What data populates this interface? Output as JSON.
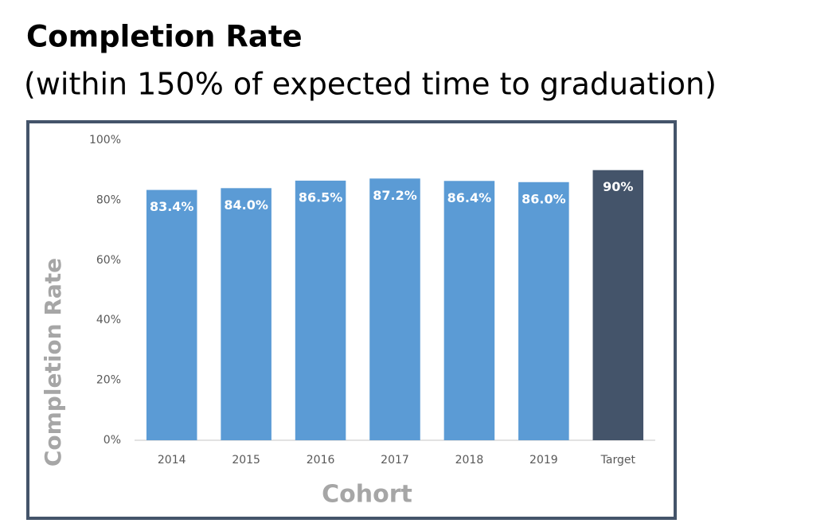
{
  "chart_data": {
    "type": "bar",
    "title": "Completion Rate",
    "subtitle": "(within 150% of expected time to graduation)",
    "y_label": "Completion Rate",
    "x_label": "Cohort",
    "categories": [
      "2014",
      "2015",
      "2016",
      "2017",
      "2018",
      "2019",
      "Target"
    ],
    "values": [
      83.4,
      84.0,
      86.5,
      87.2,
      86.4,
      86.0,
      90
    ],
    "value_labels": [
      "83.4%",
      "84.0%",
      "86.5%",
      "87.2%",
      "86.4%",
      "86.0%",
      "90%"
    ],
    "colors": [
      "#5b9bd5",
      "#5b9bd5",
      "#5b9bd5",
      "#5b9bd5",
      "#5b9bd5",
      "#5b9bd5",
      "#44546a"
    ],
    "ylim": [
      0,
      100
    ],
    "yticks": [
      {
        "value": 0,
        "label": "0%"
      },
      {
        "value": 20,
        "label": "20%"
      },
      {
        "value": 40,
        "label": "40%"
      },
      {
        "value": 60,
        "label": "60%"
      },
      {
        "value": 80,
        "label": "80%"
      },
      {
        "value": 100,
        "label": "100%"
      }
    ],
    "grid": false
  }
}
